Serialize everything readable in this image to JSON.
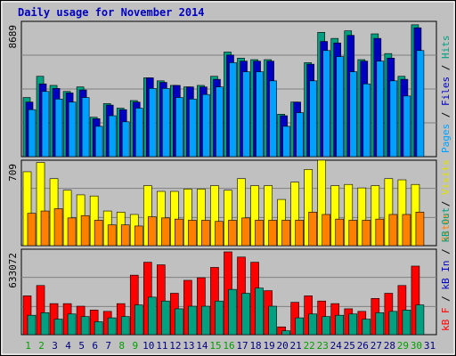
{
  "chart_data": {
    "type": "bar",
    "title": "Daily usage for November 2014",
    "categories": [
      "1",
      "2",
      "3",
      "4",
      "5",
      "6",
      "7",
      "8",
      "9",
      "10",
      "11",
      "12",
      "13",
      "14",
      "15",
      "16",
      "17",
      "18",
      "19",
      "20",
      "21",
      "22",
      "23",
      "24",
      "25",
      "26",
      "27",
      "28",
      "29",
      "30",
      "31"
    ],
    "weekend_days": [
      "1",
      "2",
      "8",
      "9",
      "15",
      "16",
      "22",
      "23",
      "29",
      "30"
    ],
    "panels": [
      {
        "ymax_label": "8689",
        "ymax": 8689,
        "right_labels": [
          {
            "text": "Pages",
            "color": "#00a0ff"
          },
          {
            "text": " / ",
            "color": "#000000"
          },
          {
            "text": "Files",
            "color": "#0000c0"
          },
          {
            "text": " / ",
            "color": "#000000"
          },
          {
            "text": "Hits",
            "color": "#00a080"
          }
        ],
        "series": [
          {
            "name": "Hits",
            "color": "#00a080",
            "values": [
              3900,
              5300,
              4700,
              4300,
              4600,
              2600,
              3500,
              3200,
              3700,
              5200,
              5000,
              4700,
              4600,
              4700,
              5300,
              6900,
              6500,
              6400,
              6400,
              2800,
              3600,
              6200,
              8200,
              7800,
              8300,
              6400,
              8100,
              6800,
              5300,
              8700,
              null
            ]
          },
          {
            "name": "Files",
            "color": "#0000c0",
            "values": [
              3600,
              4800,
              4500,
              4200,
              4400,
              2500,
              3400,
              3100,
              3600,
              5200,
              4900,
              4700,
              4600,
              4600,
              5100,
              6700,
              6300,
              6300,
              6300,
              2700,
              3600,
              6100,
              7600,
              7500,
              8000,
              6300,
              7800,
              6500,
              5100,
              8500,
              null
            ]
          },
          {
            "name": "Pages",
            "color": "#00a0ff",
            "values": [
              3100,
              4300,
              3800,
              3600,
              3900,
              2000,
              2700,
              2300,
              3200,
              4500,
              4500,
              3900,
              3800,
              4100,
              4600,
              6200,
              5600,
              5600,
              5000,
              2000,
              2900,
              5000,
              7000,
              6600,
              5600,
              4800,
              6300,
              5000,
              4000,
              7000,
              null
            ]
          }
        ]
      },
      {
        "ymax_label": "709",
        "ymax": 709,
        "right_labels": [
          {
            "text": "Sites",
            "color": "#ff8000"
          },
          {
            "text": " / ",
            "color": "#000000"
          },
          {
            "text": "Visits",
            "color": "#e0e000"
          }
        ],
        "series": [
          {
            "name": "Visits",
            "color": "#ffff00",
            "values": [
              640,
              720,
              580,
              480,
              440,
              430,
              300,
              290,
              270,
              520,
              470,
              470,
              490,
              490,
              520,
              480,
              580,
              520,
              520,
              400,
              550,
              660,
              740,
              520,
              530,
              500,
              520,
              580,
              570,
              530,
              null
            ]
          },
          {
            "name": "Sites",
            "color": "#ff8000",
            "values": [
              280,
              300,
              320,
              240,
              260,
              220,
              180,
              180,
              170,
              250,
              240,
              230,
              220,
              220,
              210,
              220,
              240,
              220,
              220,
              220,
              220,
              290,
              270,
              230,
              220,
              220,
              230,
              270,
              270,
              290,
              null
            ]
          }
        ]
      },
      {
        "ymax_label": "633072",
        "ymax": 633072,
        "right_labels": [
          {
            "text": "kB F",
            "color": "#ff0000"
          },
          {
            "text": " / ",
            "color": "#000000"
          },
          {
            "text": "kB In",
            "color": "#0000c0"
          },
          {
            "text": " / ",
            "color": "#000000"
          },
          {
            "text": "kB Out",
            "color": "#00a080"
          }
        ],
        "series": [
          {
            "name": "kB F",
            "color": "#ff0000",
            "values": [
              300000,
              380000,
              240000,
              240000,
              220000,
              190000,
              180000,
              240000,
              460000,
              560000,
              540000,
              320000,
              420000,
              440000,
              520000,
              640000,
              600000,
              560000,
              340000,
              60000,
              250000,
              300000,
              260000,
              240000,
              200000,
              180000,
              280000,
              320000,
              380000,
              530000,
              null
            ]
          },
          {
            "name": "kB Out",
            "color": "#00a080",
            "values": [
              150000,
              170000,
              120000,
              160000,
              140000,
              100000,
              130000,
              140000,
              230000,
              290000,
              260000,
              200000,
              220000,
              220000,
              260000,
              350000,
              320000,
              360000,
              220000,
              30000,
              130000,
              160000,
              140000,
              150000,
              160000,
              120000,
              170000,
              180000,
              190000,
              230000,
              null
            ]
          }
        ]
      }
    ]
  }
}
